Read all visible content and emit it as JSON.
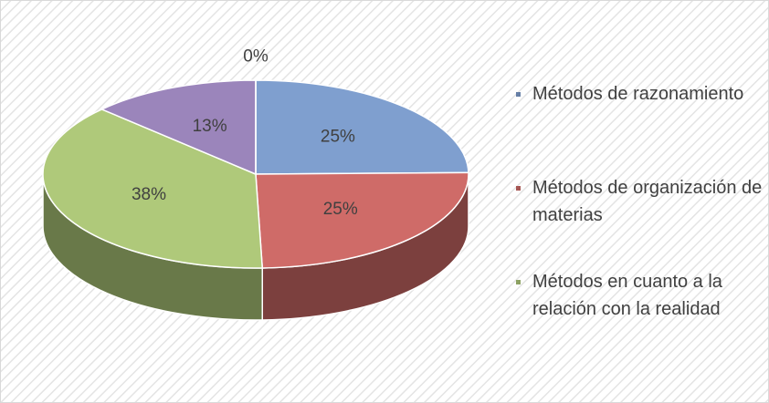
{
  "chart_data": {
    "type": "pie",
    "categories": [
      "Métodos de razonamiento",
      "Métodos de organización de materias",
      "Métodos en cuanto a la relación con la realidad",
      null,
      null
    ],
    "values": [
      25,
      25,
      38,
      13,
      0
    ],
    "value_labels": [
      "25%",
      "25%",
      "38%",
      "13%",
      "0%"
    ],
    "colors": [
      "#7f9fcf",
      "#cf6b68",
      "#afc97a",
      "#9b85bb",
      "#4bacc6"
    ],
    "legend": "right"
  }
}
